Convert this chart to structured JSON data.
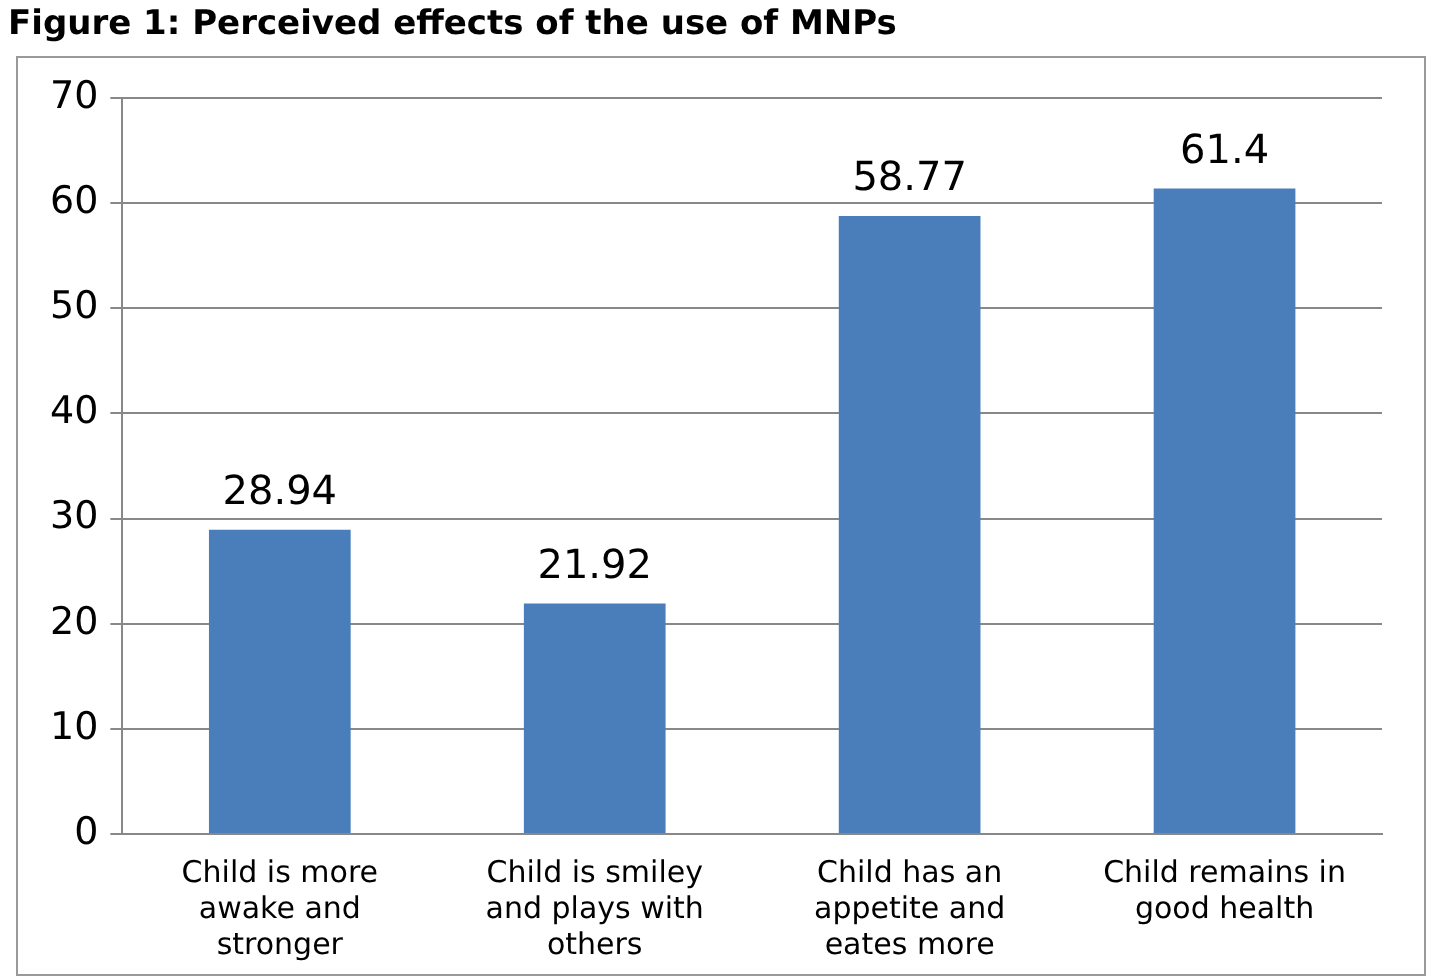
{
  "chart_data": {
    "type": "bar",
    "title": "Figure 1: Perceived effects of the use of MNPs",
    "categories": [
      "Child is more awake and stronger",
      "Child is smiley and plays with others",
      "Child has an appetite and eates more",
      "Child remains in good health"
    ],
    "values": [
      28.94,
      21.92,
      58.77,
      61.4
    ],
    "color": "#4a7ebb",
    "ylim": [
      0,
      70
    ],
    "yticks": [
      0,
      10,
      20,
      30,
      40,
      50,
      60,
      70
    ],
    "grid": "y",
    "data_labels": true,
    "legend": false
  }
}
